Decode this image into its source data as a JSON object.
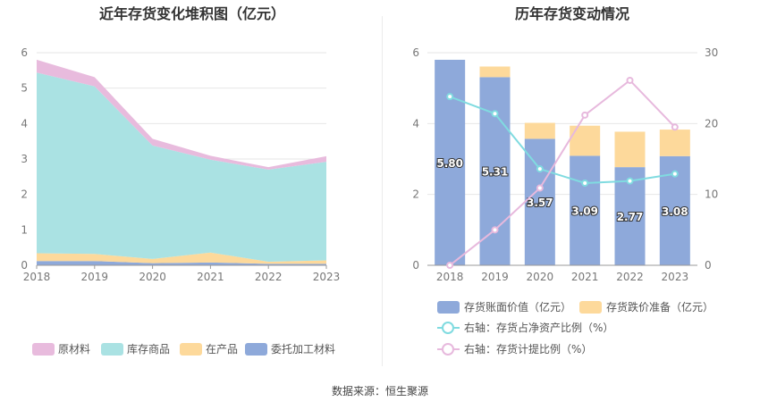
{
  "source": "数据来源：恒生聚源",
  "chart_data": [
    {
      "type": "area",
      "stacked": true,
      "title": "近年存货变化堆积图（亿元）",
      "categories": [
        "2018",
        "2019",
        "2020",
        "2021",
        "2022",
        "2023"
      ],
      "ylim": [
        0,
        6
      ],
      "yticks": [
        "0",
        "1",
        "2",
        "3",
        "4",
        "5",
        "6"
      ],
      "grid": true,
      "legend_position": "bottom",
      "series": [
        {
          "name": "委托加工材料",
          "color": "#8ea9da",
          "values": [
            0.12,
            0.12,
            0.06,
            0.08,
            0.04,
            0.04
          ]
        },
        {
          "name": "在产品",
          "color": "#fdd99b",
          "values": [
            0.22,
            0.2,
            0.12,
            0.28,
            0.06,
            0.1
          ]
        },
        {
          "name": "库存商品",
          "color": "#aae2e3",
          "values": [
            5.1,
            4.73,
            3.2,
            2.62,
            2.6,
            2.78
          ]
        },
        {
          "name": "原材料",
          "color": "#e8bbdd",
          "values": [
            0.36,
            0.26,
            0.19,
            0.11,
            0.07,
            0.16
          ]
        }
      ],
      "legend_order": [
        "原材料",
        "库存商品",
        "在产品",
        "委托加工材料"
      ]
    },
    {
      "type": "bar",
      "stacked": true,
      "title": "历年存货变动情况",
      "categories": [
        "2018",
        "2019",
        "2020",
        "2021",
        "2022",
        "2023"
      ],
      "ylim": [
        0,
        6
      ],
      "yticks": [
        "0",
        "2",
        "4",
        "6"
      ],
      "y2lim": [
        0,
        30
      ],
      "y2ticks": [
        "0",
        "10",
        "20",
        "30"
      ],
      "grid": true,
      "legend_position": "bottom",
      "series": [
        {
          "name": "存货账面价值（亿元）",
          "color": "#8ea9da",
          "values": [
            5.8,
            5.31,
            3.57,
            3.09,
            2.77,
            3.08
          ],
          "labels": [
            "5.80",
            "5.31",
            "3.57",
            "3.09",
            "2.77",
            "3.08"
          ]
        },
        {
          "name": "存货跌价准备（亿元）",
          "color": "#fdd99b",
          "values": [
            0.0,
            0.3,
            0.45,
            0.85,
            1.0,
            0.75
          ]
        }
      ],
      "line_series": [
        {
          "name": "右轴：存货占净资产比例（%）",
          "color": "#80dbe0",
          "values": [
            23.8,
            21.4,
            13.6,
            11.6,
            11.9,
            12.9
          ]
        },
        {
          "name": "右轴：存货计提比例（%）",
          "color": "#e7b9dd",
          "values": [
            0.0,
            5.0,
            10.9,
            21.2,
            26.1,
            19.5
          ]
        }
      ]
    }
  ]
}
